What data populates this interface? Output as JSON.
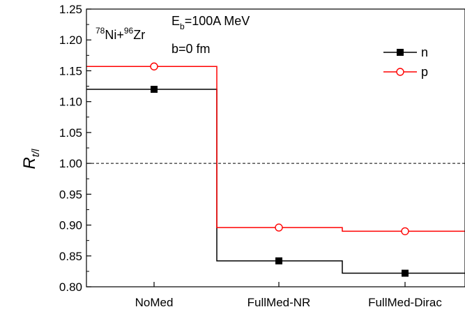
{
  "chart_data": {
    "type": "line",
    "step": true,
    "categories": [
      "NoMed",
      "FullMed-NR",
      "FullMed-Dirac"
    ],
    "series": [
      {
        "name": "n",
        "values": [
          1.12,
          0.842,
          0.822
        ],
        "color": "#000000",
        "marker": "filled-square"
      },
      {
        "name": "p",
        "values": [
          1.157,
          0.896,
          0.89
        ],
        "color": "#ff0000",
        "marker": "open-circle"
      }
    ],
    "reference_line": {
      "y": 1.0,
      "style": "dashed"
    },
    "ylim": [
      0.8,
      1.25
    ],
    "yticks": [
      "0.80",
      "0.85",
      "0.90",
      "0.95",
      "1.00",
      "1.05",
      "1.10",
      "1.15",
      "1.20",
      "1.25"
    ],
    "ylabel": {
      "main": "R",
      "sub": "t/l"
    },
    "annotations": {
      "reaction": {
        "a1": "78",
        "n1": "Ni+",
        "a2": "96",
        "n2": "Zr"
      },
      "energy": {
        "main": "E",
        "sub": "b",
        "rest": "=100A MeV"
      },
      "impact": "b=0 fm"
    },
    "legend_position": "top-right",
    "grid": false
  }
}
